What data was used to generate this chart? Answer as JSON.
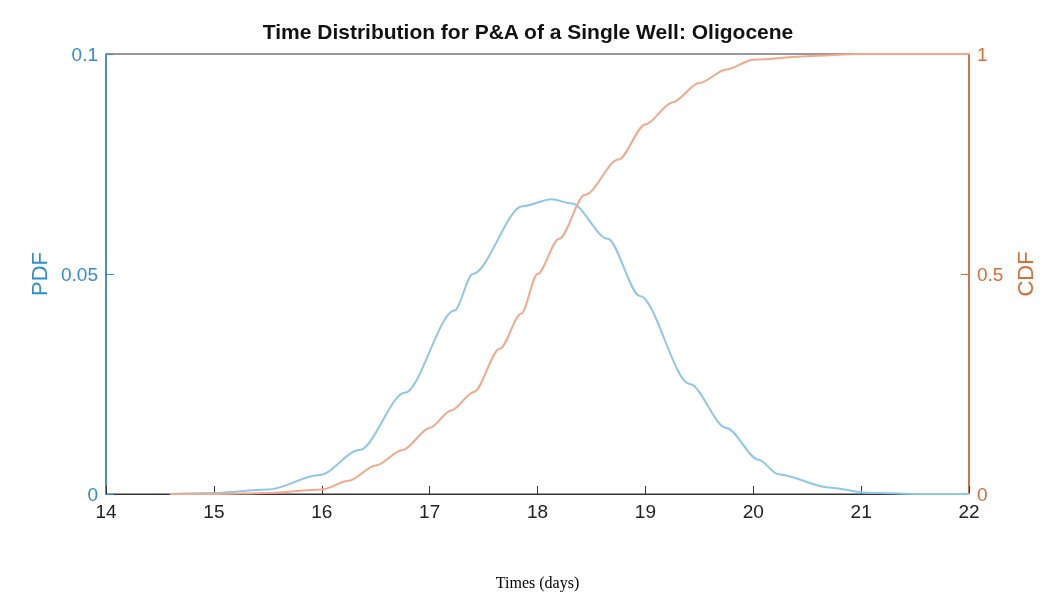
{
  "chart_data": {
    "type": "line",
    "title": "Time Distribution for P&A of a Single Well: Oligocene",
    "xlabel": "Times (days)",
    "ylabel": "PDF",
    "y2label": "CDF",
    "xlim": [
      14,
      22
    ],
    "xticks": [
      14,
      15,
      16,
      17,
      18,
      19,
      20,
      21,
      22
    ],
    "ylim": [
      0,
      0.1
    ],
    "yticks": [
      0,
      0.05,
      0.1
    ],
    "y2lim": [
      0,
      1
    ],
    "y2ticks": [
      0,
      0.5,
      1
    ],
    "grid": false,
    "marker": "none",
    "line_style": "solid",
    "series": [
      {
        "name": null,
        "color": "#8ec7ec",
        "x": [
          14.6,
          15,
          15.5,
          15.98,
          16.35,
          16.77,
          17.23,
          17.4,
          17.86,
          18.13,
          18.32,
          18.65,
          18.95,
          19.41,
          19.75,
          20.05,
          20.23,
          20.7,
          21.05,
          21.5,
          22
        ],
        "values": [
          0,
          0.0002,
          0.001,
          0.0043,
          0.01,
          0.023,
          0.0417,
          0.05,
          0.0654,
          0.067,
          0.066,
          0.058,
          0.045,
          0.025,
          0.015,
          0.0078,
          0.0045,
          0.0015,
          0.0003,
          0,
          0
        ]
      },
      {
        "name": null,
        "color": "#f2a98c",
        "axis": "y2",
        "x": [
          14.6,
          15,
          15.5,
          16,
          16.25,
          16.5,
          16.75,
          17,
          17.2,
          17.41,
          17.65,
          17.85,
          18,
          18.2,
          18.44,
          18.75,
          19,
          19.25,
          19.5,
          19.75,
          20,
          20.5,
          21,
          22
        ],
        "values": [
          0,
          0,
          0.002,
          0.01,
          0.03,
          0.065,
          0.1,
          0.15,
          0.19,
          0.232,
          0.33,
          0.41,
          0.5,
          0.58,
          0.68,
          0.76,
          0.84,
          0.89,
          0.934,
          0.965,
          0.987,
          0.995,
          1,
          1
        ]
      }
    ]
  }
}
